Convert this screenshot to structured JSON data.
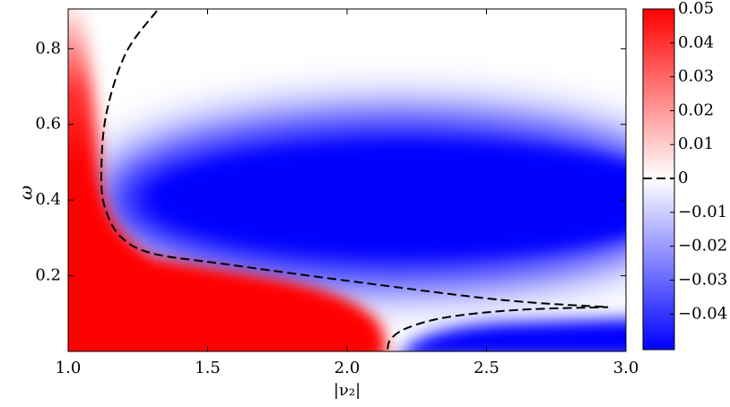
{
  "chart_data": {
    "type": "heatmap",
    "xlabel": "|ν₂|",
    "ylabel": "ω",
    "xlim": [
      1.0,
      3.0
    ],
    "ylim": [
      0.0,
      0.905
    ],
    "xticks": [
      {
        "value": 1.0,
        "label": "1.0"
      },
      1.5,
      {
        "value": 2.0,
        "label": "2.0"
      },
      2.5,
      {
        "value": 3.0,
        "label": "3.0"
      }
    ],
    "yticks": [
      0.2,
      0.4,
      0.6,
      0.8
    ],
    "clim": [
      -0.0505,
      0.05
    ],
    "cticks": [
      0.05,
      0.04,
      0.03,
      0.02,
      0.01,
      0,
      {
        "value": -0.01,
        "label": "−0.01"
      },
      {
        "value": -0.02,
        "label": "−0.02"
      },
      {
        "value": -0.03,
        "label": "−0.03"
      },
      {
        "value": -0.04,
        "label": "−0.04"
      }
    ],
    "colormap": [
      "#0000ff",
      "#ffffff",
      "#ff0000"
    ],
    "contour_level": 0,
    "contour_color": "#000000",
    "contours": [
      {
        "x": [
          1.318,
          1.206,
          1.135,
          1.119,
          1.135,
          1.19,
          1.302,
          1.56,
          2.04,
          2.556,
          2.936
        ],
        "y": [
          0.9,
          0.787,
          0.621,
          0.456,
          0.373,
          0.302,
          0.259,
          0.231,
          0.183,
          0.136,
          0.117
        ]
      },
      {
        "x": [
          2.145,
          2.158,
          2.219,
          2.363,
          2.62,
          2.936
        ],
        "y": [
          0.006,
          0.034,
          0.063,
          0.091,
          0.11,
          0.117
        ]
      }
    ]
  }
}
